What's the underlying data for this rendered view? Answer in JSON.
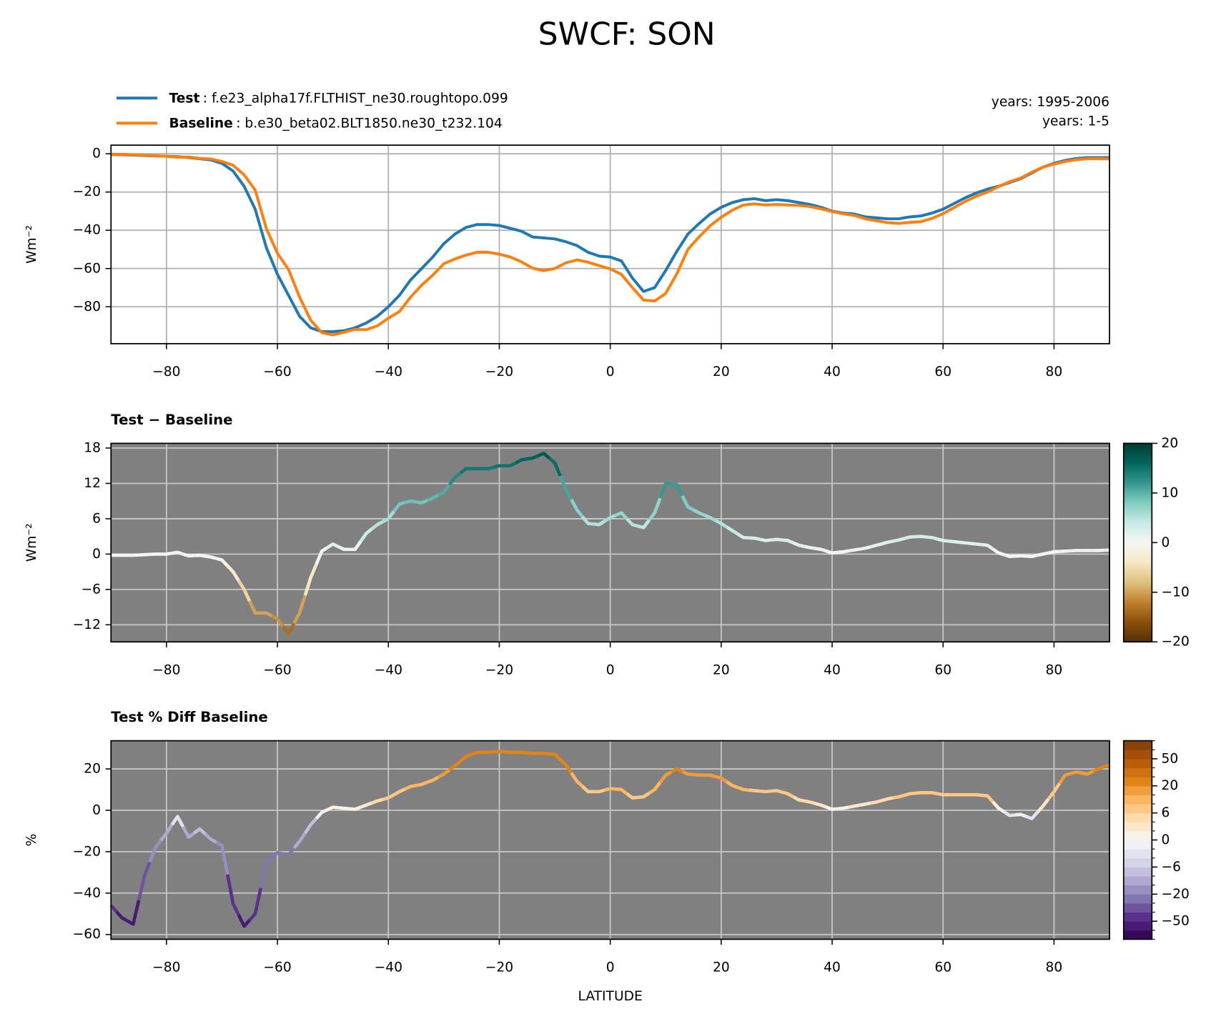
{
  "title": "SWCF: SON",
  "chart_data": [
    {
      "type": "line",
      "ylabel": "Wm⁻²",
      "x": [
        -90,
        -88,
        -86,
        -84,
        -82,
        -80,
        -78,
        -76,
        -74,
        -72,
        -70,
        -68,
        -66,
        -64,
        -62,
        -60,
        -58,
        -56,
        -54,
        -52,
        -50,
        -48,
        -46,
        -44,
        -42,
        -40,
        -38,
        -36,
        -34,
        -32,
        -30,
        -28,
        -26,
        -24,
        -22,
        -20,
        -18,
        -16,
        -14,
        -12,
        -10,
        -8,
        -6,
        -4,
        -2,
        0,
        2,
        4,
        6,
        8,
        10,
        12,
        14,
        16,
        18,
        20,
        22,
        24,
        26,
        28,
        30,
        32,
        34,
        36,
        38,
        40,
        42,
        44,
        46,
        48,
        50,
        52,
        54,
        56,
        58,
        60,
        62,
        64,
        66,
        68,
        70,
        72,
        74,
        76,
        78,
        80,
        82,
        84,
        86,
        88,
        90
      ],
      "series": [
        {
          "name": "Test",
          "case": ": f.e23_alpha17f.FLTHIST_ne30.roughtopo.099",
          "years": "years: 1995-2006",
          "color": "#1f77b4",
          "values": [
            -0.4,
            -0.5,
            -0.7,
            -0.9,
            -1.1,
            -1.3,
            -1.5,
            -2.0,
            -2.6,
            -3.2,
            -5,
            -9,
            -17,
            -29,
            -49,
            -63,
            -74,
            -85,
            -91,
            -93,
            -93,
            -92.5,
            -91,
            -88.5,
            -85,
            -80,
            -74,
            -66,
            -60,
            -54,
            -47,
            -42,
            -38.5,
            -37,
            -37,
            -37.5,
            -39,
            -40.5,
            -43.5,
            -44,
            -44.5,
            -46,
            -48,
            -51.5,
            -53.5,
            -54,
            -56,
            -65,
            -72,
            -70,
            -61,
            -51,
            -42,
            -36.5,
            -31.5,
            -28,
            -25.5,
            -24,
            -23.5,
            -24.5,
            -24,
            -24.5,
            -25.5,
            -26.5,
            -28,
            -30,
            -31,
            -31.5,
            -33,
            -33.5,
            -34,
            -34,
            -33,
            -32.5,
            -31,
            -29,
            -26,
            -23,
            -20.5,
            -18.5,
            -17,
            -15,
            -13,
            -10,
            -7,
            -5,
            -3.5,
            -2.5,
            -2,
            -2,
            -2
          ]
        },
        {
          "name": "Baseline",
          "case": ": b.e30_beta02.BLT1850.ne30_t232.104",
          "years": "years: 1-5",
          "color": "#ff7f0e",
          "values": [
            -0.2,
            -0.3,
            -0.5,
            -0.8,
            -1.1,
            -1.3,
            -1.8,
            -1.7,
            -2.4,
            -2.7,
            -4,
            -6,
            -11,
            -19,
            -39,
            -52,
            -60.5,
            -75,
            -87,
            -93.5,
            -94.7,
            -93.3,
            -91.8,
            -92,
            -90,
            -86,
            -82.5,
            -75,
            -68.7,
            -63.5,
            -57.5,
            -55,
            -53,
            -51.5,
            -51.5,
            -52.5,
            -54,
            -56.5,
            -59.8,
            -61.1,
            -60,
            -57,
            -55.5,
            -56.7,
            -58.5,
            -60.2,
            -63,
            -70,
            -76.5,
            -77,
            -73,
            -62.8,
            -50,
            -43.5,
            -37.7,
            -33.2,
            -29.5,
            -26.8,
            -26.2,
            -26.8,
            -26.5,
            -26.8,
            -27,
            -27.6,
            -28.8,
            -30.2,
            -31.4,
            -32.2,
            -34,
            -35,
            -36,
            -36.4,
            -35.9,
            -35.5,
            -33.8,
            -31.3,
            -28.1,
            -24.9,
            -22.2,
            -20,
            -17.2,
            -14.6,
            -12.7,
            -9.6,
            -7,
            -5.4,
            -4,
            -3.1,
            -2.6,
            -2.6,
            -2.7
          ]
        }
      ],
      "xlim": [
        -90,
        90
      ],
      "xticks": [
        {
          "value": -80,
          "label": "−80"
        },
        {
          "value": -60,
          "label": "−60"
        },
        {
          "value": -40,
          "label": "−40"
        },
        {
          "value": -20,
          "label": "−20"
        },
        0,
        20,
        40,
        60,
        80
      ],
      "ylim": [
        -99.3,
        4.5
      ],
      "yticks": [
        0,
        {
          "value": -20,
          "label": "−20"
        },
        {
          "value": -40,
          "label": "−40"
        },
        {
          "value": -60,
          "label": "−60"
        },
        {
          "value": -80,
          "label": "−80"
        }
      ],
      "grid": true,
      "background": "#ffffff",
      "grid_color": "#b0b0b0"
    },
    {
      "type": "colored_line",
      "title": "Test − Baseline",
      "ylabel": "Wm⁻²",
      "x": [
        -90,
        -88,
        -86,
        -84,
        -82,
        -80,
        -78,
        -76,
        -74,
        -72,
        -70,
        -68,
        -66,
        -64,
        -62,
        -60,
        -58,
        -56,
        -54,
        -52,
        -50,
        -48,
        -46,
        -44,
        -42,
        -40,
        -38,
        -36,
        -34,
        -32,
        -30,
        -28,
        -26,
        -24,
        -22,
        -20,
        -18,
        -16,
        -14,
        -12,
        -10,
        -8,
        -6,
        -4,
        -2,
        0,
        2,
        4,
        6,
        8,
        10,
        12,
        14,
        16,
        18,
        20,
        22,
        24,
        26,
        28,
        30,
        32,
        34,
        36,
        38,
        40,
        42,
        44,
        46,
        48,
        50,
        52,
        54,
        56,
        58,
        60,
        62,
        64,
        66,
        68,
        70,
        72,
        74,
        76,
        78,
        80,
        82,
        84,
        86,
        88,
        90
      ],
      "values": [
        -0.2,
        -0.2,
        -0.2,
        -0.1,
        0,
        0,
        0.3,
        -0.3,
        -0.2,
        -0.5,
        -1,
        -3,
        -6,
        -10,
        -10,
        -11,
        -13.5,
        -10,
        -4,
        0.5,
        1.7,
        0.8,
        0.8,
        3.5,
        5,
        6,
        8.5,
        9,
        8.7,
        9.5,
        10.5,
        13,
        14.5,
        14.5,
        14.5,
        15,
        15,
        16,
        16.3,
        17.1,
        15.5,
        11,
        7.5,
        5.2,
        5,
        6.2,
        7,
        5,
        4.5,
        7,
        12,
        11.8,
        8,
        7,
        6.2,
        5.2,
        4,
        2.8,
        2.7,
        2.3,
        2.5,
        2.3,
        1.5,
        1.1,
        0.8,
        0.2,
        0.4,
        0.7,
        1,
        1.5,
        2,
        2.4,
        2.9,
        3,
        2.8,
        2.3,
        2.1,
        1.9,
        1.7,
        1.5,
        0.2,
        -0.4,
        -0.3,
        -0.4,
        0,
        0.4,
        0.5,
        0.6,
        0.6,
        0.6,
        0.7
      ],
      "xlim": [
        -90,
        90
      ],
      "xticks": [
        {
          "value": -80,
          "label": "−80"
        },
        {
          "value": -60,
          "label": "−60"
        },
        {
          "value": -40,
          "label": "−40"
        },
        {
          "value": -20,
          "label": "−20"
        },
        0,
        20,
        40,
        60,
        80
      ],
      "ylim": [
        -14.9,
        18.8
      ],
      "yticks": [
        18,
        12,
        6,
        0,
        {
          "value": -6,
          "label": "−6"
        },
        {
          "value": -12,
          "label": "−12"
        }
      ],
      "grid": true,
      "background": "#808080",
      "grid_color": "#c8c8c8",
      "colormap": {
        "colors": [
          "#543005",
          "#8c510a",
          "#bf812d",
          "#dfc27d",
          "#f6e8c3",
          "#f5f5f5",
          "#c7eae5",
          "#80cdc1",
          "#35978f",
          "#01665e",
          "#003c30"
        ],
        "lim": [
          -20,
          20
        ],
        "ticks": [
          {
            "value": -20,
            "label": "−20"
          },
          {
            "value": -10,
            "label": "−10"
          },
          0,
          10,
          20
        ]
      }
    },
    {
      "type": "colored_line",
      "title": "Test % Diff Baseline",
      "ylabel": "%",
      "xlabel": "LATITUDE",
      "x": [
        -90,
        -88,
        -86,
        -84,
        -82,
        -80,
        -78,
        -76,
        -74,
        -72,
        -70,
        -68,
        -66,
        -64,
        -62,
        -60,
        -58,
        -56,
        -54,
        -52,
        -50,
        -48,
        -46,
        -44,
        -42,
        -40,
        -38,
        -36,
        -34,
        -32,
        -30,
        -28,
        -26,
        -24,
        -22,
        -20,
        -18,
        -16,
        -14,
        -12,
        -10,
        -8,
        -6,
        -4,
        -2,
        0,
        2,
        4,
        6,
        8,
        10,
        12,
        14,
        16,
        18,
        20,
        22,
        24,
        26,
        28,
        30,
        32,
        34,
        36,
        38,
        40,
        42,
        44,
        46,
        48,
        50,
        52,
        54,
        56,
        58,
        60,
        62,
        64,
        66,
        68,
        70,
        72,
        74,
        76,
        78,
        80,
        82,
        84,
        86,
        88,
        90
      ],
      "values": [
        -46,
        -52,
        -55,
        -32,
        -18,
        -11,
        -3,
        -13,
        -9,
        -14,
        -17,
        -45,
        -56,
        -50,
        -25,
        -20.5,
        -21.5,
        -15,
        -7,
        -1,
        1.5,
        1,
        0.5,
        2.5,
        4.5,
        6,
        9,
        11.5,
        12.5,
        14.5,
        17.5,
        21.5,
        26,
        28,
        28,
        28.5,
        28,
        28,
        27.5,
        27.5,
        27,
        22,
        14,
        9,
        9,
        10.5,
        10,
        6,
        6.5,
        10,
        17,
        20,
        17.5,
        17,
        17,
        15.5,
        12,
        10,
        9.5,
        9,
        9.5,
        8,
        5,
        4,
        2.5,
        0.5,
        1,
        2,
        3,
        4,
        5.5,
        6.5,
        8,
        8.5,
        8.5,
        7.5,
        7.5,
        7.5,
        7.5,
        7,
        1,
        -2.5,
        -2,
        -4,
        2,
        9,
        17,
        18.5,
        17.5,
        20,
        22
      ],
      "xlim": [
        -90,
        90
      ],
      "xticks": [
        {
          "value": -80,
          "label": "−80"
        },
        {
          "value": -60,
          "label": "−60"
        },
        {
          "value": -40,
          "label": "−40"
        },
        {
          "value": -20,
          "label": "−20"
        },
        0,
        20,
        40,
        60,
        80
      ],
      "ylim": [
        -62.3,
        33.6
      ],
      "yticks": [
        20,
        0,
        {
          "value": -20,
          "label": "−20"
        },
        {
          "value": -40,
          "label": "−40"
        },
        {
          "value": -60,
          "label": "−60"
        }
      ],
      "grid": true,
      "background": "#808080",
      "grid_color": "#c8c8c8",
      "colormap": {
        "colors": [
          "#2d004b",
          "#542788",
          "#8073ac",
          "#b2abd2",
          "#d8daeb",
          "#f7f7f7",
          "#fee0b6",
          "#fdb863",
          "#e08214",
          "#b35806",
          "#7f3b08"
        ],
        "levels": [
          -100,
          -75,
          -50,
          -40,
          -30,
          -20,
          -15,
          -10,
          -6,
          -4,
          -2,
          0,
          2,
          4,
          6,
          10,
          15,
          20,
          30,
          40,
          50,
          75,
          100
        ],
        "ticks": [
          {
            "value": -50,
            "label": "−50"
          },
          {
            "value": -20,
            "label": "−20"
          },
          {
            "value": -6,
            "label": "−6"
          },
          0,
          6,
          20,
          50
        ]
      }
    }
  ]
}
